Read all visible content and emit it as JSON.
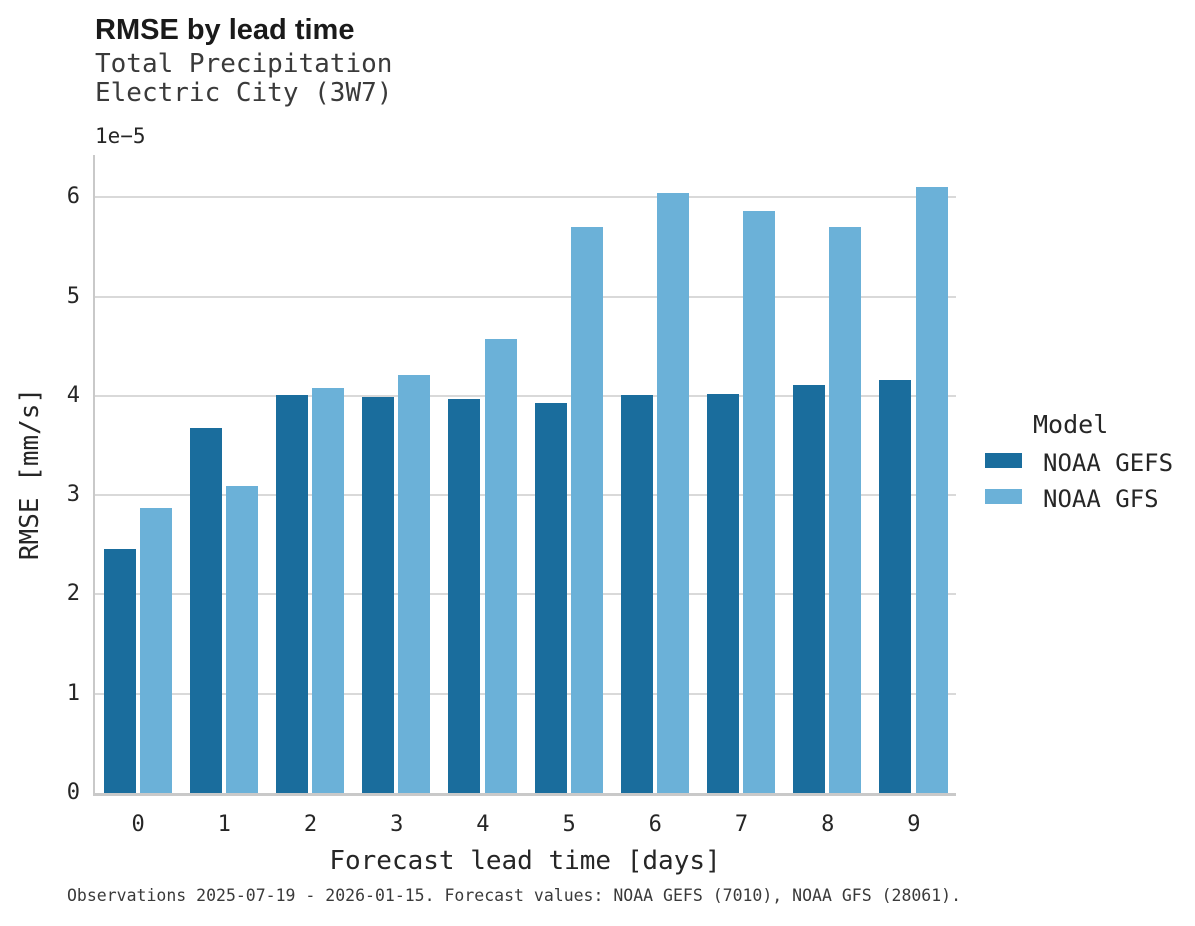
{
  "chart_data": {
    "type": "bar",
    "title": "RMSE by lead time",
    "subtitle": [
      "Total Precipitation",
      "Electric City (3W7)"
    ],
    "xlabel": "Forecast lead time [days]",
    "ylabel": "RMSE [mm/s]",
    "y_offset_label": "1e−5",
    "categories": [
      "0",
      "1",
      "2",
      "3",
      "4",
      "5",
      "6",
      "7",
      "8",
      "9"
    ],
    "series": [
      {
        "name": "NOAA GEFS",
        "color": "#1a6d9d",
        "values": [
          2.46,
          3.68,
          4.01,
          3.99,
          3.97,
          3.93,
          4.01,
          4.02,
          4.11,
          4.16
        ]
      },
      {
        "name": "NOAA GFS",
        "color": "#6bb1d8",
        "values": [
          2.87,
          3.09,
          4.08,
          4.21,
          4.57,
          5.7,
          6.04,
          5.86,
          5.7,
          6.1
        ]
      }
    ],
    "value_scale": "1e-5 mm/s",
    "ylim": [
      0,
      6.42
    ],
    "yticks": [
      0,
      1,
      2,
      3,
      4,
      5,
      6
    ],
    "grid": true,
    "legend": {
      "title": "Model",
      "position": "right"
    }
  },
  "footer": {
    "note": "Observations 2025-07-19 - 2026-01-15. Forecast values: NOAA GEFS (7010), NOAA GFS (28061)."
  },
  "colors": {
    "gefs_bar": "#1a6d9d",
    "gfs_bar": "#6bb1d8",
    "gridline": "#d9d9d9",
    "spine": "#c9c9c9"
  }
}
